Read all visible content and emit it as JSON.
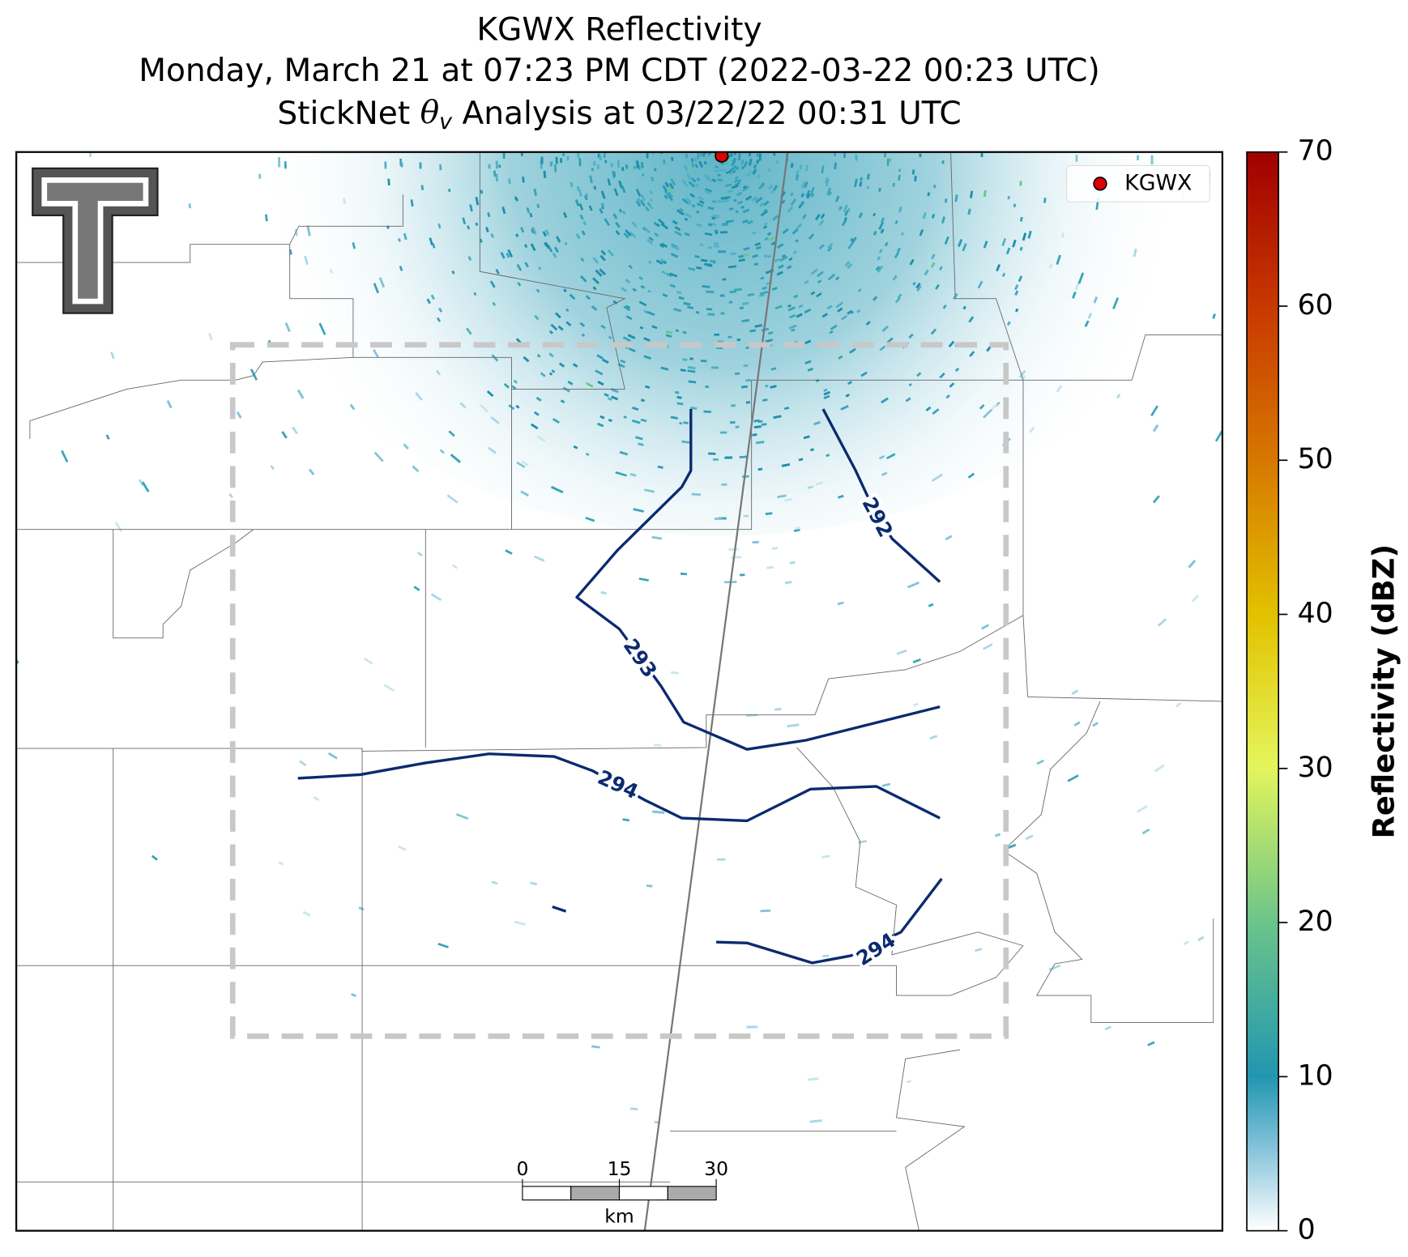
{
  "header": {
    "title_lines": [
      "KGWX Reflectivity",
      "Monday, March 21 at 07:23 PM CDT (2022-03-22 00:23 UTC)"
    ],
    "subtitle_parts": {
      "prefix": "StickNet",
      "symbol": "θ",
      "subscript": "v",
      "suffix": "Analysis at 03/22/22 00:31 UTC"
    }
  },
  "chart_data": {
    "type": "colorbar",
    "label": "Reflectivity (dBZ)",
    "ylim": [
      0,
      70
    ],
    "yticks": [
      0,
      10,
      20,
      30,
      40,
      50,
      60,
      70
    ]
  },
  "legend": {
    "label": "KGWX"
  },
  "contours": [
    {
      "level": 292
    },
    {
      "level": 293
    },
    {
      "level": 294
    },
    {
      "level": 294
    }
  ],
  "scale_bar": {
    "ticks": [
      0,
      15,
      30
    ],
    "unit": "km"
  }
}
